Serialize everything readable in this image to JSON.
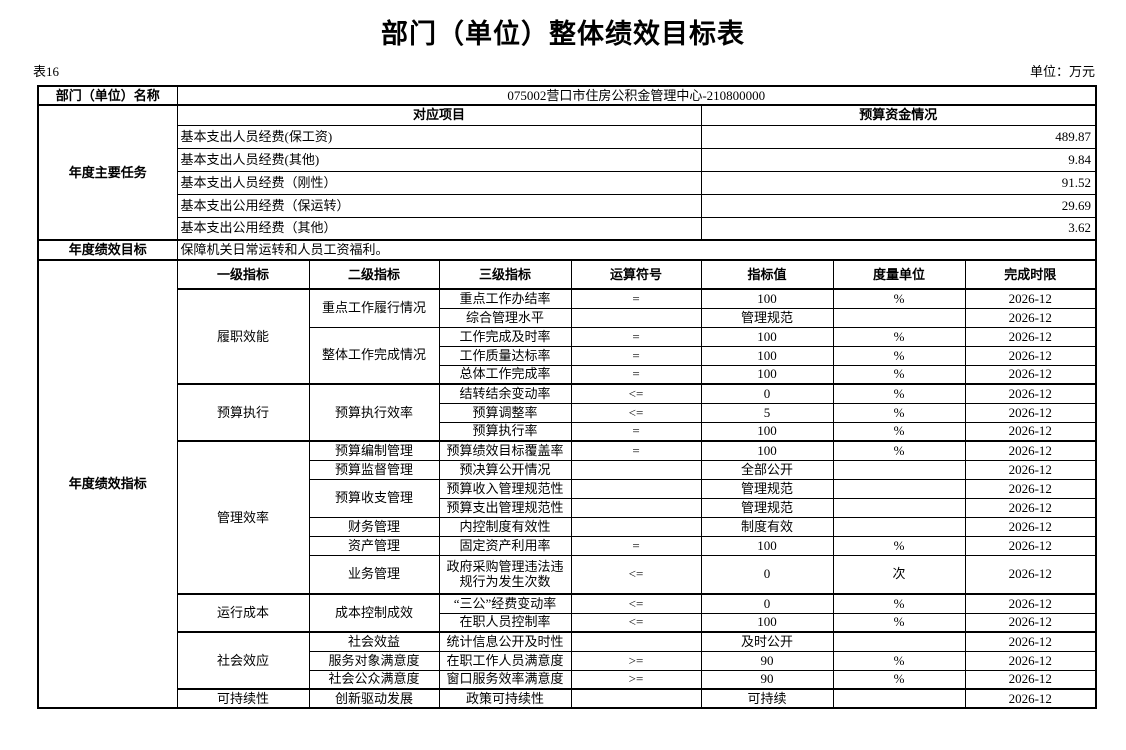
{
  "title": "部门（单位）整体绩效目标表",
  "table_label": "表16",
  "unit_label": "单位：万元",
  "department": {
    "label": "部门（单位）名称",
    "value": "075002营口市住房公积金管理中心-210800000"
  },
  "main_tasks": {
    "label": "年度主要任务",
    "project_header": "对应项目",
    "budget_header": "预算资金情况",
    "rows": [
      {
        "item": "基本支出人员经费(保工资)",
        "amount": "489.87"
      },
      {
        "item": "基本支出人员经费(其他)",
        "amount": "9.84"
      },
      {
        "item": "基本支出人员经费（刚性）",
        "amount": "91.52"
      },
      {
        "item": "基本支出公用经费（保运转）",
        "amount": "29.69"
      },
      {
        "item": "基本支出公用经费（其他）",
        "amount": "3.62"
      }
    ]
  },
  "annual_target": {
    "label": "年度绩效目标",
    "value": "保障机关日常运转和人员工资福利。"
  },
  "indicators": {
    "label": "年度绩效指标",
    "headers": [
      "一级指标",
      "二级指标",
      "三级指标",
      "运算符号",
      "指标值",
      "度量单位",
      "完成时限"
    ],
    "rows": [
      {
        "l1": "履职效能",
        "l1span": 5,
        "l2": "重点工作履行情况",
        "l2span": 2,
        "l3": "重点工作办结率",
        "op": "=",
        "val": "100",
        "unit": "%",
        "time": "2026-12",
        "top": true
      },
      {
        "l3": "综合管理水平",
        "op": "",
        "val": "管理规范",
        "unit": "",
        "time": "2026-12"
      },
      {
        "l2": "整体工作完成情况",
        "l2span": 3,
        "l3": "工作完成及时率",
        "op": "=",
        "val": "100",
        "unit": "%",
        "time": "2026-12"
      },
      {
        "l3": "工作质量达标率",
        "op": "=",
        "val": "100",
        "unit": "%",
        "time": "2026-12"
      },
      {
        "l3": "总体工作完成率",
        "op": "=",
        "val": "100",
        "unit": "%",
        "time": "2026-12"
      },
      {
        "l1": "预算执行",
        "l1span": 3,
        "l2": "预算执行效率",
        "l2span": 3,
        "l3": "结转结余变动率",
        "op": "<=",
        "val": "0",
        "unit": "%",
        "time": "2026-12",
        "top": true
      },
      {
        "l3": "预算调整率",
        "op": "<=",
        "val": "5",
        "unit": "%",
        "time": "2026-12"
      },
      {
        "l3": "预算执行率",
        "op": "=",
        "val": "100",
        "unit": "%",
        "time": "2026-12"
      },
      {
        "l1": "管理效率",
        "l1span": 7,
        "l2": "预算编制管理",
        "l2span": 1,
        "l3": "预算绩效目标覆盖率",
        "op": "=",
        "val": "100",
        "unit": "%",
        "time": "2026-12",
        "top": true
      },
      {
        "l2": "预算监督管理",
        "l2span": 1,
        "l3": "预决算公开情况",
        "op": "",
        "val": "全部公开",
        "unit": "",
        "time": "2026-12"
      },
      {
        "l2": "预算收支管理",
        "l2span": 2,
        "l3": "预算收入管理规范性",
        "op": "",
        "val": "管理规范",
        "unit": "",
        "time": "2026-12"
      },
      {
        "l3": "预算支出管理规范性",
        "op": "",
        "val": "管理规范",
        "unit": "",
        "time": "2026-12"
      },
      {
        "l2": "财务管理",
        "l2span": 1,
        "l3": "内控制度有效性",
        "op": "",
        "val": "制度有效",
        "unit": "",
        "time": "2026-12"
      },
      {
        "l2": "资产管理",
        "l2span": 1,
        "l3": "固定资产利用率",
        "op": "=",
        "val": "100",
        "unit": "%",
        "time": "2026-12"
      },
      {
        "l2": "业务管理",
        "l2span": 1,
        "l3": "政府采购管理违法违规行为发生次数",
        "op": "<=",
        "val": "0",
        "unit": "次",
        "time": "2026-12",
        "tall": true
      },
      {
        "l1": "运行成本",
        "l1span": 2,
        "l2": "成本控制成效",
        "l2span": 2,
        "l3": "“三公”经费变动率",
        "op": "<=",
        "val": "0",
        "unit": "%",
        "time": "2026-12",
        "top": true
      },
      {
        "l3": "在职人员控制率",
        "op": "<=",
        "val": "100",
        "unit": "%",
        "time": "2026-12"
      },
      {
        "l1": "社会效应",
        "l1span": 3,
        "l2": "社会效益",
        "l2span": 1,
        "l3": "统计信息公开及时性",
        "op": "",
        "val": "及时公开",
        "unit": "",
        "time": "2026-12",
        "top": true
      },
      {
        "l2": "服务对象满意度",
        "l2span": 1,
        "l3": "在职工作人员满意度",
        "op": ">=",
        "val": "90",
        "unit": "%",
        "time": "2026-12"
      },
      {
        "l2": "社会公众满意度",
        "l2span": 1,
        "l3": "窗口服务效率满意度",
        "op": ">=",
        "val": "90",
        "unit": "%",
        "time": "2026-12"
      },
      {
        "l1": "可持续性",
        "l1span": 1,
        "l2": "创新驱动发展",
        "l2span": 1,
        "l3": "政策可持续性",
        "op": "",
        "val": "可持续",
        "unit": "",
        "time": "2026-12",
        "top": true
      }
    ]
  }
}
